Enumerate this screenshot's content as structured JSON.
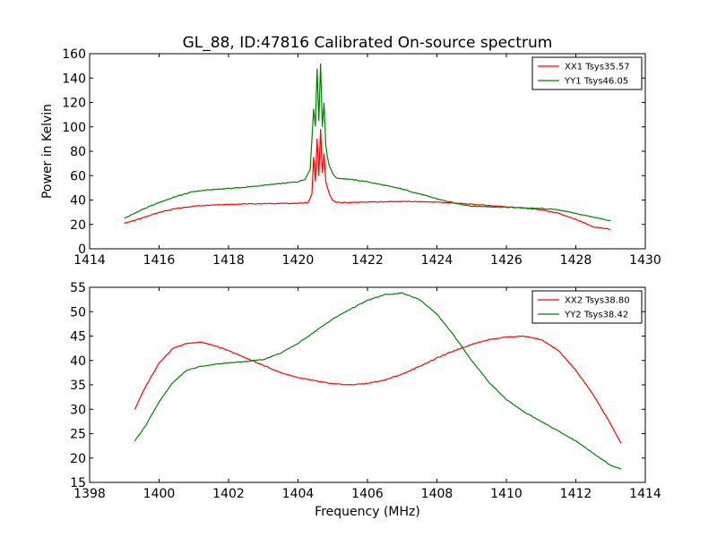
{
  "title": "GL_88, ID:47816 Calibrated On-source spectrum",
  "colors": {
    "xx": "#ff0000",
    "yy": "#008000",
    "frame": "#000000",
    "background": "#ffffff"
  },
  "chart_data": [
    {
      "type": "line",
      "title": "GL_88, ID:47816 Calibrated On-source spectrum",
      "xlabel": "",
      "ylabel": "Power in Kelvin",
      "xlim": [
        1414,
        1430
      ],
      "ylim": [
        0,
        160
      ],
      "xticks": [
        "1414",
        "1416",
        "1418",
        "1420",
        "1422",
        "1424",
        "1426",
        "1428",
        "1430"
      ],
      "yticks": [
        "0",
        "20",
        "40",
        "60",
        "80",
        "100",
        "120",
        "140",
        "160"
      ],
      "grid": false,
      "legend_position": "top-right",
      "series": [
        {
          "name": "XX1 Tsys35.57",
          "color": "#ff0000",
          "x": [
            1415.0,
            1415.5,
            1416.0,
            1416.5,
            1417.0,
            1417.5,
            1418.0,
            1418.5,
            1419.0,
            1419.5,
            1420.0,
            1420.3,
            1420.4,
            1420.45,
            1420.5,
            1420.55,
            1420.6,
            1420.65,
            1420.7,
            1420.75,
            1420.8,
            1420.85,
            1420.9,
            1421.0,
            1421.1,
            1421.5,
            1422.0,
            1422.5,
            1423.0,
            1423.5,
            1424.0,
            1424.5,
            1425.0,
            1425.5,
            1426.0,
            1426.5,
            1427.0,
            1427.5,
            1428.0,
            1428.5,
            1429.0
          ],
          "y": [
            21,
            25,
            30,
            33,
            35,
            36,
            36.5,
            36.8,
            37,
            37.2,
            37.3,
            38,
            45,
            75,
            55,
            90,
            60,
            98,
            62,
            78,
            55,
            50,
            45,
            40,
            38,
            38,
            38.3,
            38.6,
            38.8,
            38.6,
            38.3,
            37.5,
            36.5,
            35.5,
            34.5,
            33.5,
            32,
            29,
            24,
            18,
            16
          ]
        },
        {
          "name": "YY1 Tsys46.05",
          "color": "#008000",
          "x": [
            1415.0,
            1415.5,
            1416.0,
            1416.5,
            1417.0,
            1417.5,
            1418.0,
            1418.5,
            1419.0,
            1419.5,
            1420.0,
            1420.2,
            1420.35,
            1420.45,
            1420.5,
            1420.55,
            1420.6,
            1420.65,
            1420.7,
            1420.75,
            1420.8,
            1420.85,
            1420.9,
            1421.0,
            1421.1,
            1421.5,
            1422.0,
            1422.5,
            1423.0,
            1423.5,
            1424.0,
            1424.5,
            1425.0,
            1425.5,
            1426.0,
            1426.5,
            1427.0,
            1427.5,
            1428.0,
            1428.5,
            1429.0
          ],
          "y": [
            25,
            32,
            38,
            43,
            47,
            48.5,
            49.5,
            50.5,
            52,
            53.5,
            55,
            57,
            65,
            115,
            100,
            148,
            105,
            152,
            100,
            120,
            85,
            75,
            68,
            62,
            58,
            57,
            55,
            52,
            49,
            45,
            41,
            37.5,
            35,
            34.5,
            34,
            33.5,
            33,
            32,
            29,
            26,
            23
          ]
        }
      ]
    },
    {
      "type": "line",
      "title": "",
      "xlabel": "Frequency (MHz)",
      "ylabel": "",
      "xlim": [
        1398,
        1414
      ],
      "ylim": [
        15,
        55
      ],
      "xticks": [
        "1398",
        "1400",
        "1402",
        "1404",
        "1406",
        "1408",
        "1410",
        "1412",
        "1414"
      ],
      "yticks": [
        "15",
        "20",
        "25",
        "30",
        "35",
        "40",
        "45",
        "50",
        "55"
      ],
      "grid": false,
      "legend_position": "top-right",
      "series": [
        {
          "name": "XX2 Tsys38.80",
          "color": "#ff0000",
          "x": [
            1399.3,
            1399.6,
            1400.0,
            1400.4,
            1400.8,
            1401.2,
            1401.6,
            1402.0,
            1402.5,
            1403.0,
            1403.5,
            1404.0,
            1404.5,
            1405.0,
            1405.5,
            1406.0,
            1406.5,
            1407.0,
            1407.5,
            1408.0,
            1408.5,
            1409.0,
            1409.5,
            1410.0,
            1410.5,
            1411.0,
            1411.5,
            1412.0,
            1412.5,
            1413.0,
            1413.3
          ],
          "y": [
            30,
            34.5,
            39.5,
            42.5,
            43.5,
            43.8,
            43,
            42,
            40.5,
            39,
            37.5,
            36.5,
            35.8,
            35.2,
            35,
            35.3,
            36,
            37.2,
            38.8,
            40.5,
            42,
            43.3,
            44.3,
            44.8,
            45,
            44.3,
            42,
            38,
            33,
            27,
            23
          ]
        },
        {
          "name": "YY2 Tsys38.42",
          "color": "#008000",
          "x": [
            1399.3,
            1399.6,
            1400.0,
            1400.4,
            1400.8,
            1401.2,
            1401.6,
            1402.0,
            1402.5,
            1403.0,
            1403.5,
            1404.0,
            1404.5,
            1405.0,
            1405.5,
            1406.0,
            1406.5,
            1407.0,
            1407.5,
            1408.0,
            1408.5,
            1409.0,
            1409.5,
            1410.0,
            1410.5,
            1411.0,
            1411.5,
            1412.0,
            1412.5,
            1413.0,
            1413.3
          ],
          "y": [
            23.5,
            26.5,
            31.5,
            35.5,
            38,
            38.8,
            39.2,
            39.5,
            39.8,
            40.2,
            41.5,
            43.5,
            46,
            48.5,
            50.5,
            52.3,
            53.5,
            53.8,
            52.5,
            49.5,
            45,
            40,
            35.5,
            32,
            29.5,
            27.5,
            25.5,
            23.5,
            21,
            18.5,
            17.8
          ]
        }
      ]
    }
  ]
}
